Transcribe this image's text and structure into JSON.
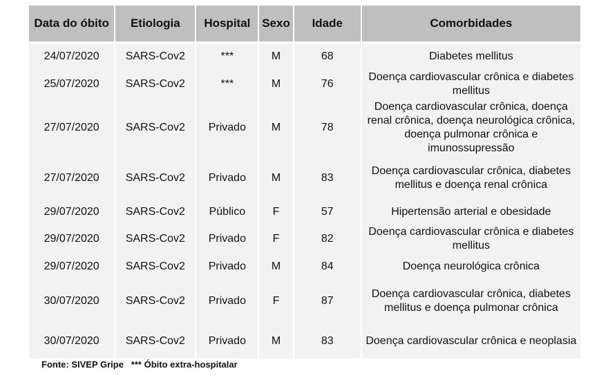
{
  "table": {
    "headers": [
      "Data do óbito",
      "Etiologia",
      "Hospital",
      "Sexo",
      "Idade",
      "Comorbidades"
    ],
    "rows": [
      [
        "24/07/2020",
        "SARS-Cov2",
        "***",
        "M",
        "68",
        "Diabetes mellitus"
      ],
      [
        "25/07/2020",
        "SARS-Cov2",
        "***",
        "M",
        "76",
        "Doença cardiovascular crônica e diabetes mellitus"
      ],
      [
        "27/07/2020",
        "SARS-Cov2",
        "Privado",
        "M",
        "78",
        "Doença cardiovascular crônica, doença renal crônica, doença neurológica crônica, doença pulmonar crônica e imunossupressão"
      ],
      [
        "27/07/2020",
        "SARS-Cov2",
        "Privado",
        "M",
        "83",
        "Doença cardiovascular crônica, diabetes mellitus e doença renal crônica"
      ],
      [
        "29/07/2020",
        "SARS-Cov2",
        "Público",
        "F",
        "57",
        "Hipertensão arterial e obesidade"
      ],
      [
        "29/07/2020",
        "SARS-Cov2",
        "Privado",
        "F",
        "82",
        "Doença cardiovascular crônica e diabetes mellitus"
      ],
      [
        "29/07/2020",
        "SARS-Cov2",
        "Privado",
        "M",
        "84",
        "Doença neurológica crônica"
      ],
      [
        "30/07/2020",
        "SARS-Cov2",
        "Privado",
        "F",
        "87",
        "Doença cardiovascular crônica, diabetes mellitus e doença pulmonar crônica"
      ],
      [
        "30/07/2020",
        "SARS-Cov2",
        "Privado",
        "M",
        "83",
        "Doença cardiovascular crônica e neoplasia"
      ]
    ]
  },
  "footer": {
    "source": "Fonte: SIVEP Gripe",
    "note": "*** Óbito extra-hospitalar"
  }
}
